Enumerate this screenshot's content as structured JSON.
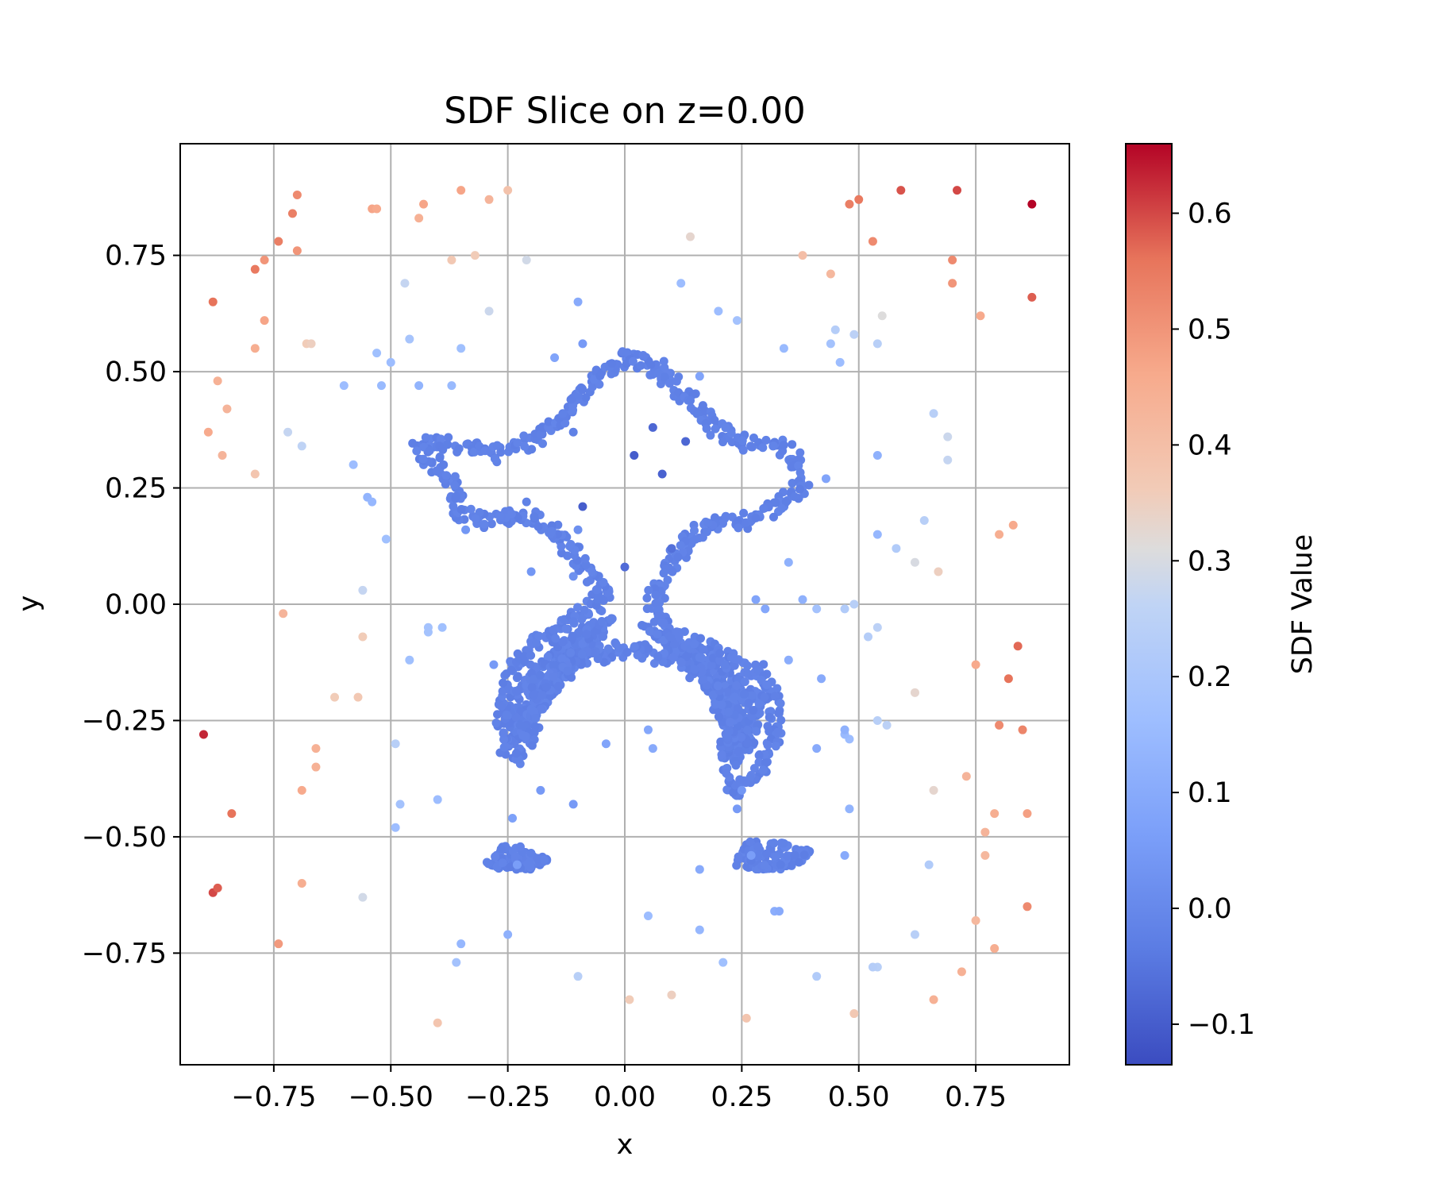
{
  "chart_data": {
    "type": "scatter",
    "title": "SDF Slice on z=0.00",
    "xlabel": "x",
    "ylabel": "y",
    "xlim": [
      -0.95,
      0.95
    ],
    "ylim": [
      -0.99,
      0.99
    ],
    "xticks": [
      -0.75,
      -0.5,
      -0.25,
      0.0,
      0.25,
      0.5,
      0.75
    ],
    "xtick_labels": [
      "−0.75",
      "−0.50",
      "−0.25",
      "0.00",
      "0.25",
      "0.50",
      "0.75"
    ],
    "yticks": [
      0.75,
      0.5,
      0.25,
      0.0,
      -0.25,
      -0.5,
      -0.75
    ],
    "ytick_labels": [
      "0.75",
      "0.50",
      "0.25",
      "0.00",
      "−0.25",
      "−0.50",
      "−0.75"
    ],
    "grid": true,
    "colormap": "coolwarm",
    "colorbar": {
      "label": "SDF Value",
      "vmin": -0.135,
      "vmax": 0.66,
      "ticks": [
        0.6,
        0.5,
        0.4,
        0.3,
        0.2,
        0.1,
        0.0,
        -0.1
      ],
      "tick_labels": [
        "0.6",
        "0.5",
        "0.4",
        "0.3",
        "0.2",
        "0.1",
        "0.0",
        "−0.1"
      ]
    },
    "surface_shape": {
      "description": "dense ring of points with SDF ≈ -0.02 tracing a humanoid outline",
      "sdf_value": -0.02,
      "outline": [
        [
          -0.44,
          0.33
        ],
        [
          -0.4,
          0.35
        ],
        [
          -0.33,
          0.34
        ],
        [
          -0.28,
          0.32
        ],
        [
          -0.18,
          0.36
        ],
        [
          -0.12,
          0.42
        ],
        [
          -0.08,
          0.47
        ],
        [
          -0.04,
          0.5
        ],
        [
          0.0,
          0.53
        ],
        [
          0.05,
          0.52
        ],
        [
          0.1,
          0.48
        ],
        [
          0.15,
          0.43
        ],
        [
          0.2,
          0.38
        ],
        [
          0.25,
          0.35
        ],
        [
          0.32,
          0.34
        ],
        [
          0.36,
          0.32
        ],
        [
          0.38,
          0.28
        ],
        [
          0.37,
          0.24
        ],
        [
          0.33,
          0.21
        ],
        [
          0.26,
          0.18
        ],
        [
          0.18,
          0.17
        ],
        [
          0.12,
          0.12
        ],
        [
          0.09,
          0.06
        ],
        [
          0.06,
          0.0
        ],
        [
          0.1,
          -0.07
        ],
        [
          0.18,
          -0.1
        ],
        [
          0.28,
          -0.14
        ],
        [
          0.31,
          -0.18
        ],
        [
          0.32,
          -0.25
        ],
        [
          0.31,
          -0.32
        ],
        [
          0.27,
          -0.38
        ],
        [
          0.23,
          -0.4
        ],
        [
          0.22,
          -0.3
        ],
        [
          0.2,
          -0.2
        ],
        [
          0.12,
          -0.12
        ],
        [
          0.03,
          -0.1
        ],
        [
          -0.03,
          -0.1
        ],
        [
          -0.1,
          -0.12
        ],
        [
          -0.18,
          -0.18
        ],
        [
          -0.2,
          -0.25
        ],
        [
          -0.22,
          -0.33
        ],
        [
          -0.25,
          -0.31
        ],
        [
          -0.26,
          -0.24
        ],
        [
          -0.24,
          -0.14
        ],
        [
          -0.18,
          -0.08
        ],
        [
          -0.09,
          -0.02
        ],
        [
          -0.04,
          0.02
        ],
        [
          -0.08,
          0.08
        ],
        [
          -0.14,
          0.14
        ],
        [
          -0.18,
          0.18
        ],
        [
          -0.25,
          0.19
        ],
        [
          -0.31,
          0.18
        ],
        [
          -0.35,
          0.2
        ],
        [
          -0.37,
          0.26
        ],
        [
          -0.4,
          0.3
        ],
        [
          -0.44,
          0.33
        ]
      ],
      "fills": [
        {
          "points": [
            [
              -0.25,
              -0.2
            ],
            [
              -0.18,
              -0.12
            ],
            [
              -0.1,
              -0.05
            ],
            [
              -0.02,
              -0.02
            ],
            [
              -0.06,
              -0.1
            ],
            [
              -0.14,
              -0.18
            ],
            [
              -0.2,
              -0.26
            ],
            [
              -0.24,
              -0.3
            ]
          ],
          "count": 320
        },
        {
          "points": [
            [
              0.03,
              -0.04
            ],
            [
              0.12,
              -0.08
            ],
            [
              0.22,
              -0.13
            ],
            [
              0.3,
              -0.2
            ],
            [
              0.28,
              -0.3
            ],
            [
              0.23,
              -0.35
            ],
            [
              0.2,
              -0.22
            ],
            [
              0.12,
              -0.12
            ]
          ],
          "count": 320
        },
        {
          "points": [
            [
              -0.3,
              -0.56
            ],
            [
              -0.26,
              -0.52
            ],
            [
              -0.2,
              -0.52
            ],
            [
              -0.16,
              -0.55
            ],
            [
              -0.2,
              -0.57
            ],
            [
              -0.27,
              -0.57
            ]
          ],
          "count": 90
        },
        {
          "points": [
            [
              0.22,
              -0.56
            ],
            [
              0.26,
              -0.51
            ],
            [
              0.33,
              -0.51
            ],
            [
              0.4,
              -0.53
            ],
            [
              0.36,
              -0.57
            ],
            [
              0.27,
              -0.57
            ]
          ],
          "count": 110
        }
      ]
    },
    "points": [
      [
        -0.7,
        0.88,
        0.52
      ],
      [
        -0.71,
        0.84,
        0.54
      ],
      [
        -0.74,
        0.78,
        0.54
      ],
      [
        -0.77,
        0.74,
        0.5
      ],
      [
        -0.79,
        0.72,
        0.55
      ],
      [
        -0.7,
        0.76,
        0.5
      ],
      [
        -0.88,
        0.65,
        0.56
      ],
      [
        -0.77,
        0.61,
        0.47
      ],
      [
        -0.79,
        0.55,
        0.45
      ],
      [
        -0.87,
        0.48,
        0.44
      ],
      [
        -0.85,
        0.42,
        0.43
      ],
      [
        -0.89,
        0.37,
        0.46
      ],
      [
        -0.86,
        0.32,
        0.43
      ],
      [
        -0.79,
        0.28,
        0.38
      ],
      [
        -0.72,
        0.37,
        0.27
      ],
      [
        -0.69,
        0.34,
        0.26
      ],
      [
        -0.68,
        0.56,
        0.36
      ],
      [
        -0.67,
        0.56,
        0.35
      ],
      [
        -0.54,
        0.85,
        0.47
      ],
      [
        -0.53,
        0.85,
        0.46
      ],
      [
        -0.43,
        0.86,
        0.47
      ],
      [
        -0.44,
        0.83,
        0.44
      ],
      [
        -0.35,
        0.89,
        0.47
      ],
      [
        -0.29,
        0.87,
        0.43
      ],
      [
        -0.25,
        0.89,
        0.39
      ],
      [
        -0.37,
        0.74,
        0.37
      ],
      [
        -0.32,
        0.75,
        0.36
      ],
      [
        -0.21,
        0.74,
        0.29
      ],
      [
        -0.47,
        0.69,
        0.27
      ],
      [
        -0.29,
        0.63,
        0.28
      ],
      [
        -0.46,
        0.57,
        0.19
      ],
      [
        -0.53,
        0.54,
        0.17
      ],
      [
        -0.5,
        0.52,
        0.16
      ],
      [
        -0.35,
        0.55,
        0.17
      ],
      [
        -0.6,
        0.47,
        0.16
      ],
      [
        -0.52,
        0.47,
        0.15
      ],
      [
        -0.44,
        0.47,
        0.13
      ],
      [
        -0.37,
        0.47,
        0.15
      ],
      [
        -0.58,
        0.3,
        0.16
      ],
      [
        -0.55,
        0.23,
        0.13
      ],
      [
        -0.54,
        0.22,
        0.14
      ],
      [
        -0.51,
        0.14,
        0.17
      ],
      [
        -0.56,
        0.03,
        0.27
      ],
      [
        -0.73,
        -0.02,
        0.43
      ],
      [
        -0.56,
        -0.07,
        0.36
      ],
      [
        -0.42,
        -0.05,
        0.18
      ],
      [
        -0.42,
        -0.06,
        0.18
      ],
      [
        -0.39,
        -0.05,
        0.17
      ],
      [
        -0.46,
        -0.12,
        0.17
      ],
      [
        -0.62,
        -0.2,
        0.36
      ],
      [
        -0.57,
        -0.2,
        0.37
      ],
      [
        -0.66,
        -0.31,
        0.44
      ],
      [
        -0.66,
        -0.35,
        0.44
      ],
      [
        -0.69,
        -0.4,
        0.46
      ],
      [
        -0.49,
        -0.3,
        0.24
      ],
      [
        -0.48,
        -0.43,
        0.18
      ],
      [
        -0.49,
        -0.48,
        0.16
      ],
      [
        -0.4,
        -0.42,
        0.16
      ],
      [
        -0.9,
        -0.28,
        0.63
      ],
      [
        -0.84,
        -0.45,
        0.56
      ],
      [
        -0.88,
        -0.62,
        0.6
      ],
      [
        -0.87,
        -0.61,
        0.58
      ],
      [
        -0.69,
        -0.6,
        0.45
      ],
      [
        -0.56,
        -0.63,
        0.29
      ],
      [
        -0.74,
        -0.73,
        0.49
      ],
      [
        -0.35,
        -0.73,
        0.14
      ],
      [
        -0.36,
        -0.77,
        0.18
      ],
      [
        -0.25,
        -0.71,
        0.12
      ],
      [
        -0.1,
        -0.8,
        0.24
      ],
      [
        -0.4,
        -0.9,
        0.38
      ],
      [
        0.01,
        -0.85,
        0.36
      ],
      [
        0.1,
        -0.84,
        0.35
      ],
      [
        0.26,
        -0.89,
        0.38
      ],
      [
        0.05,
        -0.67,
        0.16
      ],
      [
        0.16,
        -0.7,
        0.14
      ],
      [
        0.21,
        -0.77,
        0.17
      ],
      [
        0.41,
        -0.8,
        0.22
      ],
      [
        0.54,
        -0.78,
        0.24
      ],
      [
        0.53,
        -0.78,
        0.23
      ],
      [
        0.49,
        -0.88,
        0.37
      ],
      [
        0.66,
        -0.85,
        0.44
      ],
      [
        0.72,
        -0.79,
        0.44
      ],
      [
        0.79,
        -0.74,
        0.45
      ],
      [
        0.75,
        -0.68,
        0.42
      ],
      [
        0.62,
        -0.71,
        0.24
      ],
      [
        0.86,
        -0.65,
        0.52
      ],
      [
        0.86,
        -0.45,
        0.48
      ],
      [
        0.79,
        -0.45,
        0.45
      ],
      [
        0.77,
        -0.49,
        0.43
      ],
      [
        0.77,
        -0.54,
        0.42
      ],
      [
        0.73,
        -0.37,
        0.43
      ],
      [
        0.66,
        -0.4,
        0.33
      ],
      [
        0.65,
        -0.56,
        0.22
      ],
      [
        0.47,
        -0.54,
        0.1
      ],
      [
        0.48,
        -0.44,
        0.13
      ],
      [
        0.48,
        -0.29,
        0.16
      ],
      [
        0.47,
        -0.28,
        0.15
      ],
      [
        0.47,
        -0.27,
        0.12
      ],
      [
        0.41,
        -0.31,
        0.1
      ],
      [
        0.42,
        -0.16,
        0.1
      ],
      [
        0.35,
        -0.12,
        0.11
      ],
      [
        0.41,
        -0.01,
        0.18
      ],
      [
        0.47,
        -0.01,
        0.22
      ],
      [
        0.49,
        0.0,
        0.24
      ],
      [
        0.52,
        -0.07,
        0.23
      ],
      [
        0.54,
        -0.05,
        0.25
      ],
      [
        0.54,
        -0.25,
        0.24
      ],
      [
        0.56,
        -0.26,
        0.25
      ],
      [
        0.62,
        -0.19,
        0.33
      ],
      [
        0.75,
        -0.13,
        0.46
      ],
      [
        0.8,
        -0.26,
        0.52
      ],
      [
        0.85,
        -0.27,
        0.53
      ],
      [
        0.82,
        -0.16,
        0.56
      ],
      [
        0.84,
        -0.09,
        0.57
      ],
      [
        0.83,
        0.17,
        0.46
      ],
      [
        0.8,
        0.15,
        0.45
      ],
      [
        0.67,
        0.07,
        0.35
      ],
      [
        0.62,
        0.09,
        0.3
      ],
      [
        0.64,
        0.18,
        0.24
      ],
      [
        0.58,
        0.12,
        0.22
      ],
      [
        0.54,
        0.15,
        0.14
      ],
      [
        0.54,
        0.32,
        0.12
      ],
      [
        0.43,
        0.27,
        0.08
      ],
      [
        0.35,
        0.09,
        0.12
      ],
      [
        0.38,
        0.01,
        0.12
      ],
      [
        0.28,
        0.01,
        0.08
      ],
      [
        0.3,
        -0.01,
        0.09
      ],
      [
        0.34,
        0.55,
        0.15
      ],
      [
        0.44,
        0.56,
        0.18
      ],
      [
        0.46,
        0.52,
        0.16
      ],
      [
        0.45,
        0.59,
        0.23
      ],
      [
        0.49,
        0.58,
        0.25
      ],
      [
        0.54,
        0.56,
        0.24
      ],
      [
        0.55,
        0.62,
        0.31
      ],
      [
        0.66,
        0.41,
        0.24
      ],
      [
        0.69,
        0.36,
        0.28
      ],
      [
        0.69,
        0.31,
        0.27
      ],
      [
        0.76,
        0.62,
        0.46
      ],
      [
        0.7,
        0.69,
        0.5
      ],
      [
        0.7,
        0.74,
        0.52
      ],
      [
        0.87,
        0.66,
        0.58
      ],
      [
        0.87,
        0.86,
        0.66
      ],
      [
        0.71,
        0.89,
        0.6
      ],
      [
        0.59,
        0.89,
        0.59
      ],
      [
        0.5,
        0.87,
        0.55
      ],
      [
        0.48,
        0.86,
        0.54
      ],
      [
        0.53,
        0.78,
        0.52
      ],
      [
        0.38,
        0.75,
        0.4
      ],
      [
        0.44,
        0.71,
        0.42
      ],
      [
        0.14,
        0.79,
        0.33
      ],
      [
        0.12,
        0.69,
        0.16
      ],
      [
        0.2,
        0.63,
        0.16
      ],
      [
        0.24,
        0.61,
        0.18
      ],
      [
        -0.1,
        0.65,
        0.1
      ],
      [
        -0.15,
        0.53,
        0.08
      ],
      [
        -0.09,
        0.56,
        0.05
      ],
      [
        0.06,
        0.38,
        -0.08
      ],
      [
        0.02,
        0.32,
        -0.1
      ],
      [
        0.13,
        0.35,
        -0.08
      ],
      [
        0.08,
        0.28,
        -0.09
      ],
      [
        -0.09,
        0.21,
        -0.1
      ],
      [
        -0.21,
        0.22,
        -0.02
      ],
      [
        -0.34,
        0.16,
        0.04
      ],
      [
        -0.2,
        0.07,
        0.04
      ],
      [
        -0.11,
        0.06,
        0.02
      ],
      [
        -0.07,
        0.07,
        -0.01
      ],
      [
        0.0,
        0.08,
        -0.07
      ],
      [
        -0.1,
        0.16,
        0.02
      ],
      [
        0.1,
        0.12,
        -0.06
      ],
      [
        0.16,
        0.49,
        0.08
      ],
      [
        -0.11,
        0.37,
        -0.02
      ],
      [
        -0.28,
        -0.13,
        0.05
      ],
      [
        -0.24,
        -0.46,
        0.07
      ],
      [
        -0.23,
        -0.56,
        0.06
      ],
      [
        -0.11,
        -0.43,
        0.05
      ],
      [
        -0.18,
        -0.4,
        0.05
      ],
      [
        -0.04,
        -0.3,
        0.08
      ],
      [
        0.05,
        -0.27,
        0.09
      ],
      [
        0.06,
        -0.31,
        0.1
      ],
      [
        0.16,
        -0.57,
        0.1
      ],
      [
        0.27,
        -0.54,
        0.06
      ],
      [
        0.25,
        -0.4,
        0.04
      ],
      [
        0.24,
        -0.44,
        0.05
      ],
      [
        0.32,
        -0.66,
        0.11
      ],
      [
        0.33,
        -0.66,
        0.1
      ]
    ]
  }
}
